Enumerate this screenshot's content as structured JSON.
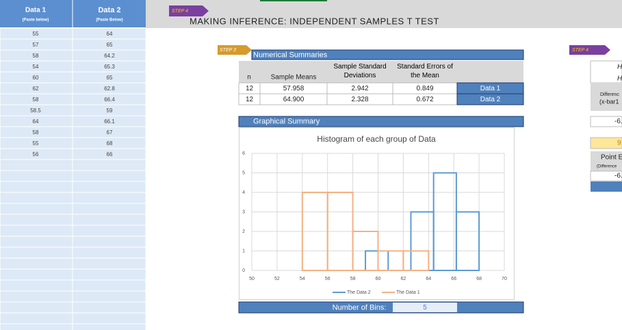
{
  "sheet": {
    "headers": [
      {
        "title": "Data 1",
        "note": "(Paste below)"
      },
      {
        "title": "Data 2",
        "note": "(Paste Below)"
      }
    ],
    "data1": [
      55,
      57,
      58,
      54,
      60,
      62,
      58,
      58.5,
      64,
      58,
      55,
      56
    ],
    "data2": [
      64,
      65,
      64.2,
      65.3,
      65,
      62.8,
      66.4,
      59,
      66.1,
      67,
      68,
      66
    ]
  },
  "header": {
    "badge": "STEP 4",
    "title": "MAKING INFERENCE: INDEPENDENT SAMPLES T TEST"
  },
  "summary": {
    "badge": "STEP 3",
    "title": "Numerical Summaries",
    "columns": [
      "n",
      "Sample Means",
      "Sample Standard Deviations",
      "Standard Errors of the Mean"
    ],
    "rows": [
      [
        "12",
        "57.958",
        "2.942",
        "0.849",
        "Data 1"
      ],
      [
        "12",
        "64.900",
        "2.328",
        "0.672",
        "Data 2"
      ]
    ]
  },
  "graphical": {
    "title": "Graphical Summary",
    "bins_label": "Number of Bins:",
    "bins_value": "5"
  },
  "right_panel": {
    "badge": "STEP 4",
    "texts": [
      "H",
      "H",
      "Differenc",
      "(x-bar1",
      "-6.",
      "9",
      "Point E",
      "(Difference",
      "-6."
    ]
  },
  "chart_data": {
    "type": "histogram",
    "title": "Histogram of each group of Data",
    "series": [
      {
        "name": "The Data 2",
        "color": "#5b9bd5",
        "bins": [
          59,
          60.8,
          62.6,
          64.4,
          66.2,
          68
        ],
        "values": [
          1,
          0,
          3,
          5,
          3
        ]
      },
      {
        "name": "The Data 1",
        "color": "#f4b183",
        "bins": [
          54,
          56,
          58,
          60,
          62,
          64
        ],
        "values": [
          4,
          4,
          2,
          1,
          1
        ]
      }
    ],
    "xlim": [
      50,
      70
    ],
    "xticks": [
      50,
      52,
      54,
      56,
      58,
      60,
      62,
      64,
      66,
      68,
      70
    ],
    "ylim": [
      0,
      6
    ],
    "yticks": [
      0,
      1,
      2,
      3,
      4,
      5,
      6
    ],
    "grid": true,
    "legend": "bottom"
  }
}
